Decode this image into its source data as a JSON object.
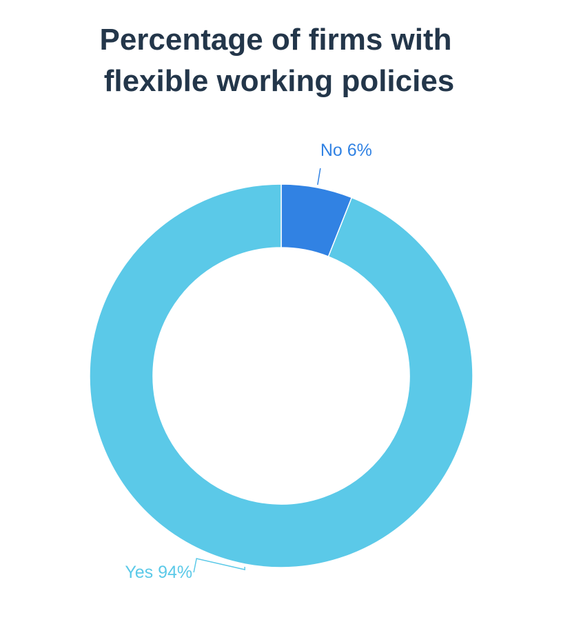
{
  "chart_data": {
    "type": "donut",
    "title": [
      "Percentage of firms with",
      "flexible working policies"
    ],
    "categories": [
      "No",
      "Yes"
    ],
    "values": [
      6,
      94
    ],
    "value_labels": [
      "6%",
      "94%"
    ],
    "colors": [
      "#3182e3",
      "#5bc9e8"
    ]
  }
}
